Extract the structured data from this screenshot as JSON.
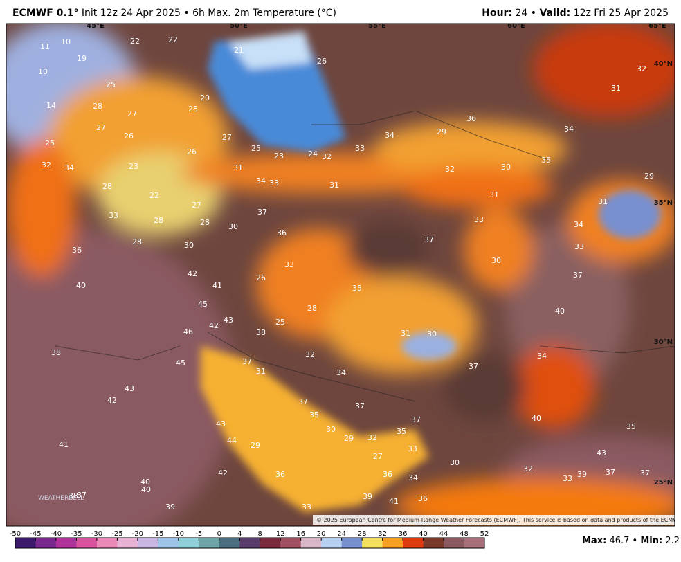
{
  "header": {
    "model": "ECMWF 0.1°",
    "product": "Init 12z 24 Apr 2025 • 6h Max. 2m Temperature (°C)",
    "hour_label": "Hour:",
    "hour": "24",
    "separator": "•",
    "valid_label": "Valid:",
    "valid": "12z Fri 25 Apr 2025"
  },
  "map": {
    "lon_labels": [
      "45°E",
      "50°E",
      "55°E",
      "60°E",
      "65°E"
    ],
    "lat_labels": [
      "40°N",
      "35°N",
      "30°N",
      "25°N"
    ],
    "temperature_labels": [
      11,
      10,
      19,
      22,
      22,
      21,
      26,
      10,
      25,
      20,
      14,
      28,
      27,
      28,
      27,
      26,
      27,
      25,
      25,
      23,
      24,
      33,
      34,
      29,
      36,
      34,
      32,
      31,
      26,
      32,
      34,
      23,
      31,
      32,
      32,
      30,
      35,
      29,
      28,
      34,
      33,
      31,
      31,
      22,
      27,
      31,
      33,
      28,
      28,
      37,
      30,
      33,
      34,
      36,
      37,
      28,
      30,
      33,
      36,
      30,
      33,
      37,
      42,
      26,
      40,
      41,
      35,
      45,
      28,
      40,
      43,
      42,
      25,
      46,
      38,
      31,
      30,
      38,
      37,
      32,
      45,
      31,
      34,
      37,
      34,
      43,
      42,
      37,
      37,
      35,
      37,
      43,
      40,
      35,
      30,
      29,
      32,
      35,
      41,
      44,
      29,
      33,
      27,
      43,
      30,
      42,
      36,
      36,
      34,
      32,
      33,
      39,
      37,
      37,
      40,
      40,
      38,
      37,
      39,
      41,
      36,
      39,
      33
    ],
    "logo": "WEATHERBELL",
    "credit": "© 2025 European Centre for Medium-Range Weather Forecasts (ECMWF). This service is based on data and products of the ECMWF."
  },
  "colorbar": {
    "ticks": [
      -50,
      -45,
      -40,
      -35,
      -30,
      -25,
      -20,
      -15,
      -10,
      -5,
      0,
      4,
      8,
      12,
      16,
      20,
      24,
      28,
      32,
      36,
      40,
      44,
      48,
      52
    ],
    "colors": [
      "#3b1a6e",
      "#7a2a8e",
      "#b0339c",
      "#d8559e",
      "#e889b7",
      "#e7b2d3",
      "#c9b6e2",
      "#9fc3e6",
      "#8fd0d8",
      "#6fa5a8",
      "#4c6f80",
      "#5a3d6a",
      "#7a2c3e",
      "#a05060",
      "#d8b8c8",
      "#b8d0f0",
      "#7890d0",
      "#f4e060",
      "#f5a020",
      "#e03a10",
      "#7a3a2a",
      "#8a5a60",
      "#a8707a"
    ]
  },
  "footer": {
    "max_label": "Max:",
    "max": "46.7",
    "separator": "•",
    "min_label": "Min:",
    "min": "2.2"
  }
}
